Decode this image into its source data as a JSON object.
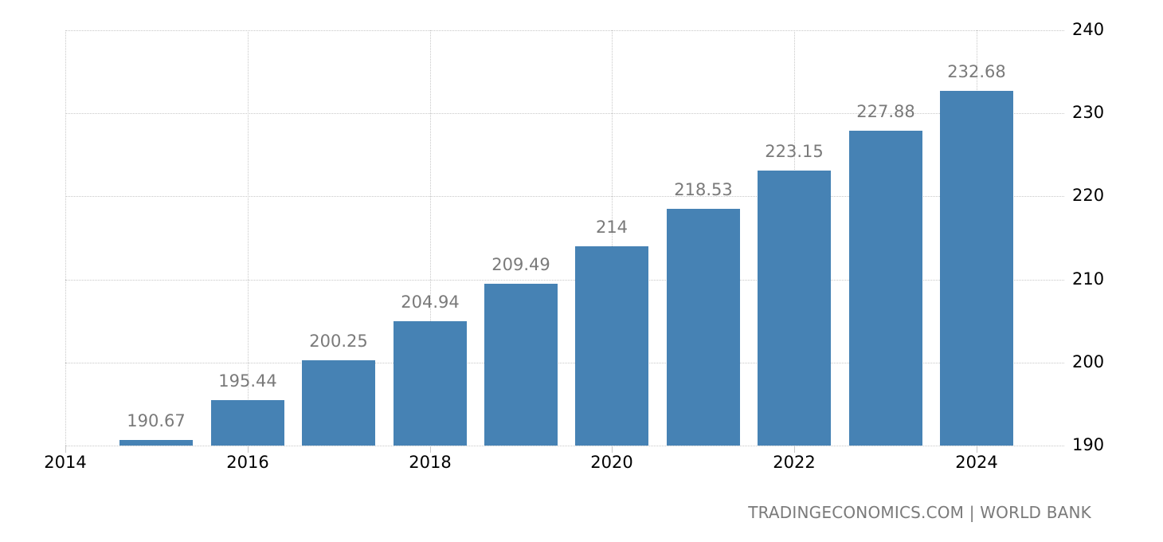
{
  "chart_data": {
    "type": "bar",
    "title": "",
    "xlabel": "",
    "ylabel": "",
    "categories": [
      "2015",
      "2016",
      "2017",
      "2018",
      "2019",
      "2020",
      "2021",
      "2022",
      "2023",
      "2024"
    ],
    "values": [
      190.67,
      195.44,
      200.25,
      204.94,
      209.49,
      214,
      218.53,
      223.15,
      227.88,
      232.68
    ],
    "value_labels": [
      "190.67",
      "195.44",
      "200.25",
      "204.94",
      "209.49",
      "214",
      "218.53",
      "223.15",
      "227.88",
      "232.68"
    ],
    "ylim": [
      190,
      240
    ],
    "yticks": [
      "240",
      "230",
      "220",
      "210",
      "200",
      "190"
    ],
    "xticks": [
      "2014",
      "2016",
      "2018",
      "2020",
      "2022",
      "2024"
    ],
    "y_axis_position": "right",
    "grid": true,
    "legend": null,
    "bar_color": "#4682B4",
    "label_color": "#7a7a7a"
  },
  "footer": {
    "source": "TRADINGECONOMICS.COM | WORLD BANK"
  }
}
